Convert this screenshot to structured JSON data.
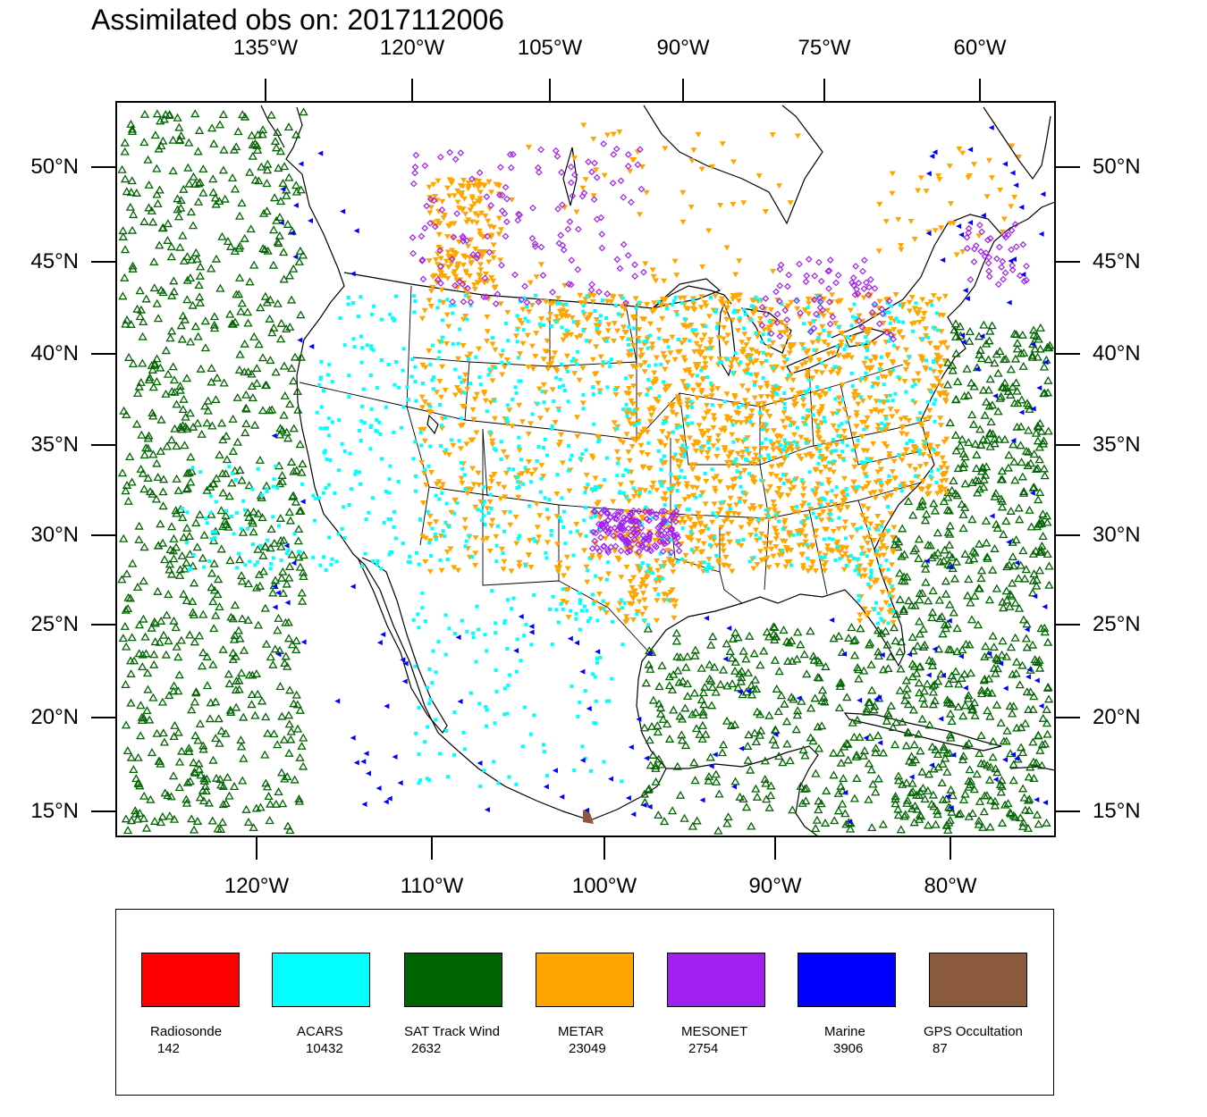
{
  "title": "Assimilated obs on: 2017112006",
  "axes": {
    "top_ticks": [
      "135°W",
      "120°W",
      "105°W",
      "90°W",
      "75°W",
      "60°W"
    ],
    "bottom_ticks": [
      "120°W",
      "110°W",
      "100°W",
      "90°W",
      "80°W"
    ],
    "left_ticks": [
      "50°N",
      "45°N",
      "40°N",
      "35°N",
      "30°N",
      "25°N",
      "20°N",
      "15°N"
    ],
    "right_ticks": [
      "50°N",
      "45°N",
      "40°N",
      "35°N",
      "30°N",
      "25°N",
      "20°N",
      "15°N"
    ]
  },
  "map": {
    "extent": {
      "lon": [
        -128,
        -74
      ],
      "lat": [
        14,
        53
      ]
    },
    "projection": "lambert-conformal",
    "region": "CONUS"
  },
  "legend": {
    "items": [
      {
        "name": "Radiosonde",
        "count": "142",
        "color": "#ff0000",
        "marker": "circle"
      },
      {
        "name": "ACARS",
        "count": "10432",
        "color": "#00ffff",
        "marker": "square"
      },
      {
        "name": "SAT Track Wind",
        "count": "2632",
        "color": "#006400",
        "marker": "triangle-up"
      },
      {
        "name": "METAR",
        "count": "23049",
        "color": "#ffa500",
        "marker": "triangle-down"
      },
      {
        "name": "MESONET",
        "count": "2754",
        "color": "#a020f0",
        "marker": "diamond"
      },
      {
        "name": "Marine",
        "count": "3906",
        "color": "#0000ff",
        "marker": "triangle-left"
      },
      {
        "name": "GPS Occultation",
        "count": "87",
        "color": "#8b5a3c",
        "marker": "pentagon"
      }
    ]
  }
}
